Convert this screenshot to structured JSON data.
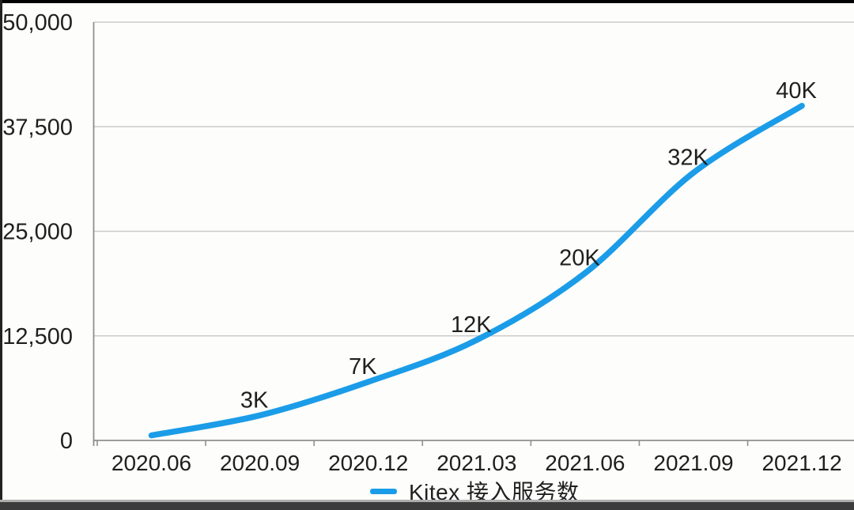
{
  "chart_data": {
    "type": "line",
    "title": "",
    "xlabel": "",
    "ylabel": "",
    "categories": [
      "2020.06",
      "2020.09",
      "2020.12",
      "2021.03",
      "2021.06",
      "2021.09",
      "2021.12"
    ],
    "series": [
      {
        "name": "Kitex 接入服务数",
        "values": [
          600,
          3000,
          7000,
          12000,
          20000,
          32000,
          40000
        ],
        "color": "#1b9ce8"
      }
    ],
    "point_labels": [
      "",
      "3K",
      "7K",
      "12K",
      "20K",
      "32K",
      "40K"
    ],
    "yticks": [
      0,
      12500,
      25000,
      37500,
      50000
    ],
    "ytick_labels": [
      "0",
      "12,500",
      "25,000",
      "37,500",
      "50,000"
    ],
    "ylim": [
      0,
      50000
    ],
    "grid": "horizontal",
    "legend_position": "bottom"
  },
  "legend": {
    "label": "Kitex 接入服务数",
    "swatch_color": "#1b9ce8"
  },
  "colors": {
    "line": "#1b9ce8",
    "grid": "#cbcbcb",
    "axis": "#8f8f8f",
    "text": "#1f1f1f",
    "background": "#fdfdfb"
  }
}
